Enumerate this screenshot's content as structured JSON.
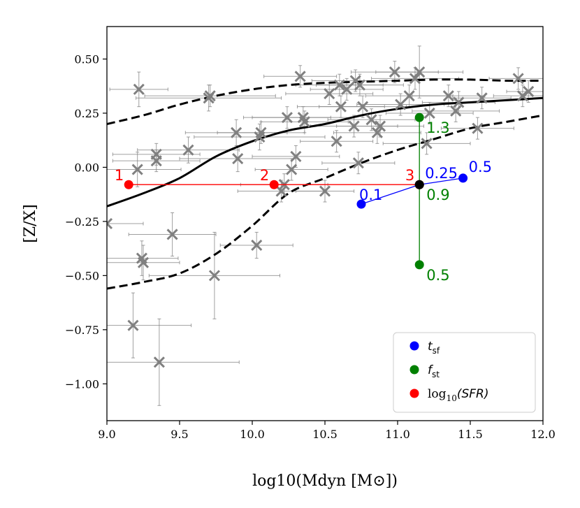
{
  "chart_data": {
    "type": "scatter",
    "xlabel": "log10(Mdyn [M⊙])",
    "ylabel": "[Z/X]",
    "xlim": [
      9.0,
      12.0
    ],
    "ylim": [
      -1.17,
      0.65
    ],
    "xticks": [
      9.0,
      9.5,
      10.0,
      10.5,
      11.0,
      11.5,
      12.0
    ],
    "xtick_labels": [
      "9.0",
      "9.5",
      "10.0",
      "10.5",
      "11.0",
      "11.5",
      "12.0"
    ],
    "yticks": [
      0.5,
      0.25,
      0.0,
      -0.25,
      -0.5,
      -0.75,
      -1.0
    ],
    "ytick_labels": [
      "0.50",
      "0.25",
      "0.00",
      "−0.25",
      "−0.50",
      "−0.75",
      "−1.00"
    ],
    "colors": {
      "observed": "#808080",
      "model": "#000000",
      "tsf": "#0000ff",
      "fst": "#008000",
      "sfr": "#ff0000",
      "reference": "#000000"
    },
    "observed_points": [
      {
        "x": 9.0,
        "y": -0.26,
        "xerr": 0.25,
        "yerr": 0.0
      },
      {
        "x": 9.18,
        "y": -0.73,
        "xerr": 0.4,
        "yerr": 0.15
      },
      {
        "x": 9.21,
        "y": -0.01,
        "xerr": 0.3,
        "yerr": 0.08
      },
      {
        "x": 9.22,
        "y": 0.36,
        "xerr": 0.2,
        "yerr": 0.08
      },
      {
        "x": 9.24,
        "y": -0.42,
        "xerr": 0.25,
        "yerr": 0.08
      },
      {
        "x": 9.25,
        "y": -0.44,
        "xerr": 0.25,
        "yerr": 0.08
      },
      {
        "x": 9.34,
        "y": 0.06,
        "xerr": 0.3,
        "yerr": 0.05
      },
      {
        "x": 9.34,
        "y": 0.03,
        "xerr": 0.3,
        "yerr": 0.05
      },
      {
        "x": 9.36,
        "y": -0.9,
        "xerr": 0.55,
        "yerr": 0.2
      },
      {
        "x": 9.45,
        "y": -0.31,
        "xerr": 0.3,
        "yerr": 0.1
      },
      {
        "x": 9.56,
        "y": 0.08,
        "xerr": 0.35,
        "yerr": 0.06
      },
      {
        "x": 9.7,
        "y": 0.32,
        "xerr": 0.5,
        "yerr": 0.06
      },
      {
        "x": 9.71,
        "y": 0.33,
        "xerr": 0.45,
        "yerr": 0.05
      },
      {
        "x": 9.74,
        "y": -0.5,
        "xerr": 0.45,
        "yerr": 0.2
      },
      {
        "x": 9.89,
        "y": 0.16,
        "xerr": 0.35,
        "yerr": 0.06
      },
      {
        "x": 9.9,
        "y": 0.04,
        "xerr": 0.4,
        "yerr": 0.06
      },
      {
        "x": 10.03,
        "y": -0.36,
        "xerr": 0.25,
        "yerr": 0.06
      },
      {
        "x": 10.05,
        "y": 0.14,
        "xerr": 0.45,
        "yerr": 0.06
      },
      {
        "x": 10.06,
        "y": 0.16,
        "xerr": 0.3,
        "yerr": 0.05
      },
      {
        "x": 10.2,
        "y": -0.11,
        "xerr": 0.3,
        "yerr": 0.05
      },
      {
        "x": 10.22,
        "y": -0.08,
        "xerr": 0.3,
        "yerr": 0.05
      },
      {
        "x": 10.24,
        "y": 0.23,
        "xerr": 0.3,
        "yerr": 0.05
      },
      {
        "x": 10.27,
        "y": -0.01,
        "xerr": 0.25,
        "yerr": 0.05
      },
      {
        "x": 10.3,
        "y": 0.05,
        "xerr": 0.3,
        "yerr": 0.05
      },
      {
        "x": 10.33,
        "y": 0.42,
        "xerr": 0.25,
        "yerr": 0.05
      },
      {
        "x": 10.35,
        "y": 0.23,
        "xerr": 0.35,
        "yerr": 0.05
      },
      {
        "x": 10.36,
        "y": 0.21,
        "xerr": 0.3,
        "yerr": 0.05
      },
      {
        "x": 10.5,
        "y": -0.11,
        "xerr": 0.2,
        "yerr": 0.05
      },
      {
        "x": 10.53,
        "y": 0.34,
        "xerr": 0.3,
        "yerr": 0.05
      },
      {
        "x": 10.58,
        "y": 0.12,
        "xerr": 0.25,
        "yerr": 0.05
      },
      {
        "x": 10.6,
        "y": 0.38,
        "xerr": 0.3,
        "yerr": 0.05
      },
      {
        "x": 10.61,
        "y": 0.28,
        "xerr": 0.3,
        "yerr": 0.05
      },
      {
        "x": 10.65,
        "y": 0.36,
        "xerr": 0.25,
        "yerr": 0.05
      },
      {
        "x": 10.7,
        "y": 0.19,
        "xerr": 0.3,
        "yerr": 0.05
      },
      {
        "x": 10.71,
        "y": 0.4,
        "xerr": 0.3,
        "yerr": 0.05
      },
      {
        "x": 10.73,
        "y": 0.02,
        "xerr": 0.25,
        "yerr": 0.05
      },
      {
        "x": 10.74,
        "y": 0.38,
        "xerr": 0.3,
        "yerr": 0.05
      },
      {
        "x": 10.76,
        "y": 0.28,
        "xerr": 0.3,
        "yerr": 0.05
      },
      {
        "x": 10.82,
        "y": 0.22,
        "xerr": 0.3,
        "yerr": 0.05
      },
      {
        "x": 10.86,
        "y": 0.16,
        "xerr": 0.3,
        "yerr": 0.05
      },
      {
        "x": 10.88,
        "y": 0.19,
        "xerr": 0.3,
        "yerr": 0.05
      },
      {
        "x": 10.98,
        "y": 0.44,
        "xerr": 0.3,
        "yerr": 0.05
      },
      {
        "x": 11.02,
        "y": 0.29,
        "xerr": 0.3,
        "yerr": 0.05
      },
      {
        "x": 11.08,
        "y": 0.33,
        "xerr": 0.3,
        "yerr": 0.05
      },
      {
        "x": 11.12,
        "y": 0.41,
        "xerr": 0.3,
        "yerr": 0.05
      },
      {
        "x": 11.15,
        "y": 0.44,
        "xerr": 0.3,
        "yerr": 0.12
      },
      {
        "x": 11.2,
        "y": 0.11,
        "xerr": 0.3,
        "yerr": 0.05
      },
      {
        "x": 11.22,
        "y": 0.25,
        "xerr": 0.3,
        "yerr": 0.05
      },
      {
        "x": 11.35,
        "y": 0.33,
        "xerr": 0.25,
        "yerr": 0.05
      },
      {
        "x": 11.4,
        "y": 0.26,
        "xerr": 0.3,
        "yerr": 0.05
      },
      {
        "x": 11.42,
        "y": 0.3,
        "xerr": 0.25,
        "yerr": 0.05
      },
      {
        "x": 11.55,
        "y": 0.18,
        "xerr": 0.25,
        "yerr": 0.05
      },
      {
        "x": 11.58,
        "y": 0.32,
        "xerr": 0.2,
        "yerr": 0.05
      },
      {
        "x": 11.83,
        "y": 0.41,
        "xerr": 0.2,
        "yerr": 0.05
      },
      {
        "x": 11.86,
        "y": 0.33,
        "xerr": 0.2,
        "yerr": 0.05
      },
      {
        "x": 11.9,
        "y": 0.35,
        "xerr": 0.15,
        "yerr": 0.05
      }
    ],
    "model_curves": [
      {
        "name": "median",
        "style": "solid",
        "x": [
          9.0,
          9.25,
          9.5,
          9.75,
          10.0,
          10.25,
          10.5,
          10.75,
          11.0,
          11.25,
          11.5,
          11.75,
          12.0
        ],
        "y": [
          -0.18,
          -0.12,
          -0.05,
          0.05,
          0.12,
          0.17,
          0.2,
          0.24,
          0.27,
          0.29,
          0.3,
          0.31,
          0.32
        ]
      },
      {
        "name": "upper",
        "style": "dashed",
        "x": [
          9.0,
          9.25,
          9.5,
          9.75,
          10.0,
          10.25,
          10.5,
          10.75,
          11.0,
          11.25,
          11.5,
          11.75,
          12.0
        ],
        "y": [
          0.2,
          0.24,
          0.29,
          0.33,
          0.36,
          0.38,
          0.39,
          0.395,
          0.4,
          0.405,
          0.405,
          0.4,
          0.4
        ]
      },
      {
        "name": "lower",
        "style": "dashed",
        "x": [
          9.0,
          9.25,
          9.5,
          9.75,
          10.0,
          10.25,
          10.5,
          10.75,
          11.0,
          11.25,
          11.5,
          11.75,
          12.0
        ],
        "y": [
          -0.56,
          -0.53,
          -0.49,
          -0.4,
          -0.27,
          -0.12,
          -0.05,
          0.02,
          0.08,
          0.13,
          0.18,
          0.21,
          0.24
        ]
      }
    ],
    "reference_point": {
      "x": 11.15,
      "y": -0.08
    },
    "param_series": [
      {
        "name": "tsf",
        "color": "#0000ff",
        "points": [
          {
            "x": 10.75,
            "y": -0.17,
            "label": "0.1"
          },
          {
            "x": 11.15,
            "y": -0.08,
            "label": "0.25"
          },
          {
            "x": 11.45,
            "y": -0.05,
            "label": "0.5"
          }
        ]
      },
      {
        "name": "fst",
        "color": "#008000",
        "points": [
          {
            "x": 11.15,
            "y": -0.45,
            "label": "0.5"
          },
          {
            "x": 11.15,
            "y": -0.08,
            "label": "0.9"
          },
          {
            "x": 11.15,
            "y": 0.23,
            "label": "1.3"
          }
        ]
      },
      {
        "name": "sfr",
        "color": "#ff0000",
        "points": [
          {
            "x": 9.15,
            "y": -0.08,
            "label": "1"
          },
          {
            "x": 10.15,
            "y": -0.08,
            "label": "2"
          },
          {
            "x": 11.15,
            "y": -0.08,
            "label": "3"
          }
        ]
      }
    ],
    "legend": {
      "placement": "lower-right",
      "entries": [
        {
          "key": "tsf",
          "text": "t",
          "sub": "sf",
          "italic": true,
          "color": "#0000ff"
        },
        {
          "key": "fst",
          "text": "f",
          "sub": "st",
          "italic": true,
          "color": "#008000"
        },
        {
          "key": "sfr",
          "text": "log",
          "sub": "10",
          "suffix": "(SFR)",
          "italic": false,
          "color": "#ff0000"
        }
      ]
    }
  }
}
